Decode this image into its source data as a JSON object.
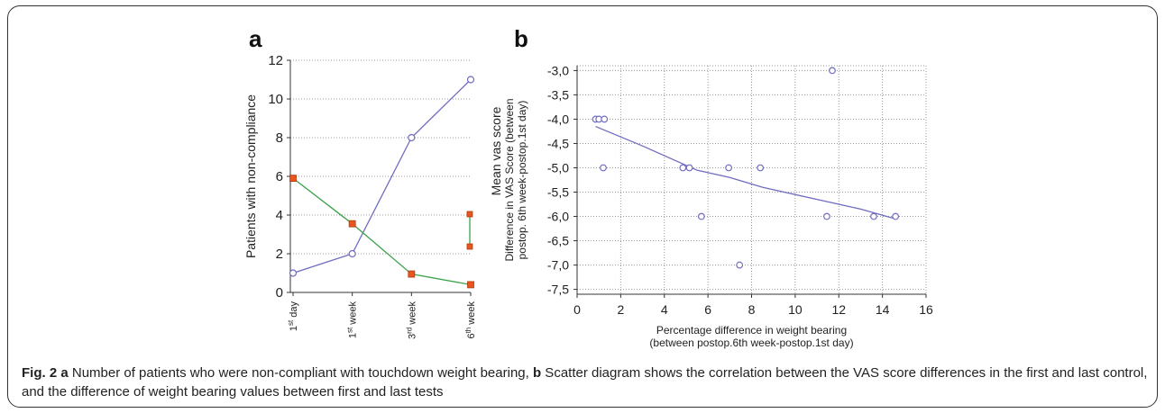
{
  "panels": {
    "a_letter": "a",
    "b_letter": "b"
  },
  "caption": {
    "fig_label": "Fig. 2",
    "a_label": "a",
    "a_text": " Number of patients who were non-compliant with touchdown weight bearing, ",
    "b_label": "b",
    "b_text": " Scatter diagram shows the correlation between the VAS score differences in the first and last control, and the difference of weight bearing values between first and last tests"
  },
  "colors": {
    "line_blue": "#6f6cc0",
    "line_green": "#3aa24a",
    "marker_orange": "#e8561c",
    "grid": "#999999"
  },
  "chart_data": [
    {
      "type": "line",
      "title": "",
      "categories": [
        "1st day",
        "1st week",
        "3rd week",
        "6th week"
      ],
      "category_labels": [
        {
          "base": "1",
          "sup": "st",
          "rest": " day"
        },
        {
          "base": "1",
          "sup": "st",
          "rest": " week"
        },
        {
          "base": "3",
          "sup": "rd",
          "rest": " week"
        },
        {
          "base": "6",
          "sup": "th",
          "rest": " week"
        }
      ],
      "ylabel": "Patients with non-compliance",
      "ylim": [
        0,
        12
      ],
      "yticks": [
        0,
        2,
        4,
        6,
        8,
        10,
        12
      ],
      "grid": true,
      "series": [
        {
          "name": "",
          "values": [
            1,
            2,
            8,
            11
          ],
          "marker": "circle",
          "color": "#6f6cc0"
        },
        {
          "name": "Mean vas score",
          "values": [
            5.9,
            3.55,
            0.95,
            0.4
          ],
          "marker": "square",
          "color": "#3aa24a"
        }
      ],
      "legend": {
        "label": "Mean vas score",
        "placement": "right"
      }
    },
    {
      "type": "scatter",
      "title": "",
      "xlabel_line1": "Percentage difference in weight bearing",
      "xlabel_line2": "(between postop.6th week-postop.1st day)",
      "ylabel_line1": "Difference in VAS Score (between",
      "ylabel_line2": "postop. 6th week-postop.1st day)",
      "xlim": [
        0,
        16
      ],
      "ylim": [
        -7.6,
        -2.9
      ],
      "xticks": [
        0,
        2,
        4,
        6,
        8,
        10,
        12,
        14,
        16
      ],
      "yticks": [
        -3.0,
        -3.5,
        -4.0,
        -4.5,
        -5.0,
        -5.5,
        -6.0,
        -6.5,
        -7.0,
        -7.5
      ],
      "ytick_labels": [
        "-3,0",
        "-3,5",
        "-4,0",
        "-4,5",
        "-5,0",
        "-5,5",
        "-6,0",
        "-6,5",
        "-7,0",
        "-7,5"
      ],
      "grid": true,
      "points": [
        {
          "x": 0.85,
          "y": -4.0
        },
        {
          "x": 1.0,
          "y": -4.0
        },
        {
          "x": 1.25,
          "y": -4.0
        },
        {
          "x": 1.2,
          "y": -5.0
        },
        {
          "x": 4.85,
          "y": -5.0
        },
        {
          "x": 5.15,
          "y": -5.0
        },
        {
          "x": 5.7,
          "y": -6.0
        },
        {
          "x": 6.95,
          "y": -5.0
        },
        {
          "x": 7.45,
          "y": -7.0
        },
        {
          "x": 8.4,
          "y": -5.0
        },
        {
          "x": 11.45,
          "y": -6.0
        },
        {
          "x": 11.7,
          "y": -3.0
        },
        {
          "x": 13.6,
          "y": -6.0
        },
        {
          "x": 14.6,
          "y": -6.0
        }
      ],
      "fit_line": [
        {
          "x": 0.85,
          "y": -4.15
        },
        {
          "x": 3.0,
          "y": -4.55
        },
        {
          "x": 5.5,
          "y": -5.05
        },
        {
          "x": 7.0,
          "y": -5.2
        },
        {
          "x": 8.5,
          "y": -5.4
        },
        {
          "x": 11.0,
          "y": -5.65
        },
        {
          "x": 13.0,
          "y": -5.85
        },
        {
          "x": 14.6,
          "y": -6.05
        }
      ]
    }
  ]
}
